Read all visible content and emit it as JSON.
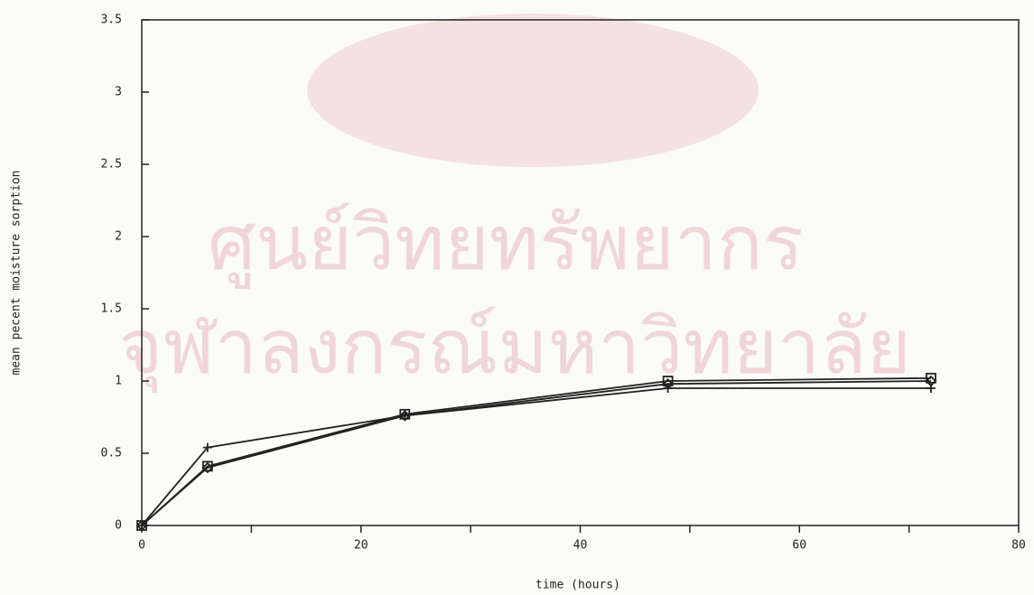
{
  "chart_data": {
    "type": "line",
    "xlabel": "time (hours)",
    "ylabel": "mean pecent moisture sorption",
    "annotations": [
      "ศูนย์วิทยทรัพยากร",
      "จุฬาลงกรณ์มหาวิทยาลัย"
    ],
    "x": [
      0,
      6,
      24,
      48,
      72
    ],
    "series": [
      {
        "color": "#222222",
        "marker": "plus",
        "values": [
          0,
          0.54,
          0.76,
          0.95,
          0.95
        ]
      },
      {
        "color": "#222222",
        "marker": "square",
        "values": [
          0,
          0.41,
          0.77,
          1.0,
          1.02
        ]
      },
      {
        "color": "#222222",
        "marker": "diamond",
        "values": [
          0,
          0.4,
          0.76,
          0.98,
          1.0
        ]
      }
    ],
    "xlim": [
      0,
      80
    ],
    "xticks": [
      0,
      20,
      40,
      60,
      80
    ],
    "xminorticks": [
      10,
      30,
      50,
      70
    ],
    "ylim": [
      0,
      3.5
    ],
    "yticks": [
      0,
      0.5,
      1,
      1.5,
      2,
      2.5,
      3,
      3.5
    ],
    "grid": false
  }
}
